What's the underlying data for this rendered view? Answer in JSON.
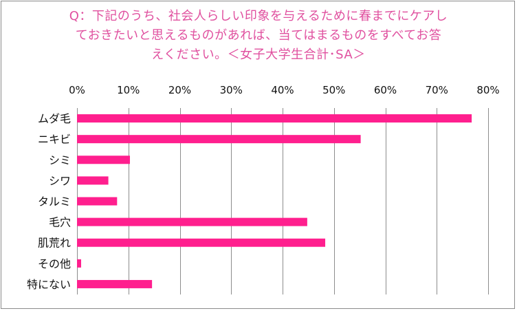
{
  "title_lines": [
    "Q：下記のうち、社会人らしい印象を与えるために春までにケアし",
    "ておきたいと思えるものがあれば、当てはまるものをすべてお答",
    "えください。＜女子大学生合計･SA＞"
  ],
  "colors": {
    "bar": "#ff1f8e",
    "title": "#e0509f",
    "grid": "#8c8c8c"
  },
  "chart_data": {
    "type": "bar",
    "orientation": "horizontal",
    "title": "Q：下記のうち、社会人らしい印象を与えるために春までにケアしておきたいと思えるものがあれば、当てはまるものをすべてお答えください。＜女子大学生合計･SA＞",
    "categories": [
      "ムダ毛",
      "ニキビ",
      "シミ",
      "シワ",
      "タルミ",
      "毛穴",
      "肌荒れ",
      "その他",
      "特にない"
    ],
    "values": [
      76.8,
      55.2,
      10.3,
      6.1,
      7.8,
      44.8,
      48.3,
      0.8,
      14.6
    ],
    "unit": "%",
    "xlim": [
      0,
      80
    ],
    "xticks": [
      0,
      10,
      20,
      30,
      40,
      50,
      60,
      70,
      80
    ],
    "xtick_labels": [
      "0%",
      "10%",
      "20%",
      "30%",
      "40%",
      "50%",
      "60%",
      "70%",
      "80%"
    ],
    "axis_position": "top",
    "grid": true,
    "legend": "none"
  }
}
